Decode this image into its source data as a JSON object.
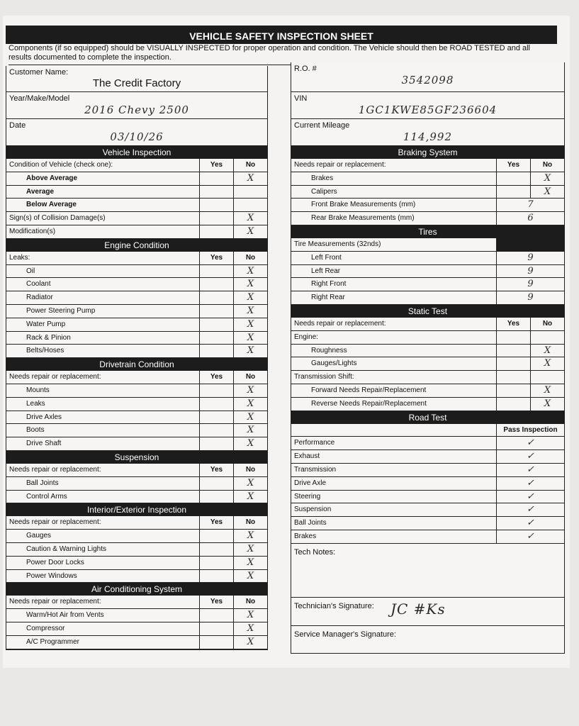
{
  "title": "VEHICLE SAFETY INSPECTION SHEET",
  "intro": "Components (if so equipped) should be VISUALLY INSPECTED for proper operation and condition. The Vehicle should then be ROAD TESTED and all results documented to complete the inspection.",
  "left_fields": [
    {
      "label": "Customer Name:",
      "value": "The Credit Factory",
      "hand": false
    },
    {
      "label": "Year/Make/Model",
      "value": "2016 Chevy 2500",
      "hand": true
    },
    {
      "label": "Date",
      "value": "03/10/26",
      "hand": true
    }
  ],
  "right_fields": [
    {
      "label": "R.O. #",
      "value": "3542098"
    },
    {
      "label": "VIN",
      "value": "1GC1KWE85GF236604"
    },
    {
      "label": "Current Mileage",
      "value": "114,992"
    }
  ],
  "left_sections": [
    {
      "title": "Vehicle Inspection",
      "rows": [
        {
          "type": "head",
          "label": "Condition of Vehicle (check one):",
          "yes": "Yes",
          "no": "No"
        },
        {
          "label": "Above Average",
          "bold": true,
          "ind": true,
          "no": "X"
        },
        {
          "label": "Average",
          "bold": true,
          "ind": true
        },
        {
          "label": "Below Average",
          "bold": true,
          "ind": true
        },
        {
          "label": "Sign(s) of Collision Damage(s)",
          "no": "X"
        },
        {
          "label": "Modification(s)",
          "no": "X"
        }
      ]
    },
    {
      "title": "Engine Condition",
      "rows": [
        {
          "type": "head",
          "label": "Leaks:",
          "yes": "Yes",
          "no": "No"
        },
        {
          "label": "Oil",
          "ind": true,
          "no": "X"
        },
        {
          "label": "Coolant",
          "ind": true,
          "no": "X"
        },
        {
          "label": "Radiator",
          "ind": true,
          "no": "X"
        },
        {
          "label": "Power Steering Pump",
          "ind": true,
          "no": "X"
        },
        {
          "label": "Water Pump",
          "ind": true,
          "no": "X"
        },
        {
          "label": "Rack & Pinion",
          "ind": true,
          "no": "X"
        },
        {
          "label": "Belts/Hoses",
          "ind": true,
          "no": "X"
        }
      ]
    },
    {
      "title": "Drivetrain Condition",
      "rows": [
        {
          "type": "head",
          "label": "Needs repair or replacement:",
          "yes": "Yes",
          "no": "No"
        },
        {
          "label": "Mounts",
          "ind": true,
          "no": "X"
        },
        {
          "label": "Leaks",
          "ind": true,
          "no": "X"
        },
        {
          "label": "Drive Axles",
          "ind": true,
          "no": "X"
        },
        {
          "label": "Boots",
          "ind": true,
          "no": "X"
        },
        {
          "label": "Drive Shaft",
          "ind": true,
          "no": "X"
        }
      ]
    },
    {
      "title": "Suspension",
      "rows": [
        {
          "type": "head",
          "label": "Needs repair or replacement:",
          "yes": "Yes",
          "no": "No"
        },
        {
          "label": "Ball Joints",
          "ind": true,
          "no": "X"
        },
        {
          "label": "Control Arms",
          "ind": true,
          "no": "X"
        }
      ]
    },
    {
      "title": "Interior/Exterior Inspection",
      "rows": [
        {
          "type": "head",
          "label": "Needs repair or replacement:",
          "yes": "Yes",
          "no": "No"
        },
        {
          "label": "Gauges",
          "ind": true,
          "no": "X"
        },
        {
          "label": "Caution & Warning Lights",
          "ind": true,
          "no": "X"
        },
        {
          "label": "Power Door Locks",
          "ind": true,
          "no": "X"
        },
        {
          "label": "Power Windows",
          "ind": true,
          "no": "X"
        }
      ]
    },
    {
      "title": "Air Conditioning System",
      "rows": [
        {
          "type": "head",
          "label": "Needs repair or replacement:",
          "yes": "Yes",
          "no": "No"
        },
        {
          "label": "Warm/Hot Air from Vents",
          "ind": true,
          "no": "X"
        },
        {
          "label": "Compressor",
          "ind": true,
          "no": "X"
        },
        {
          "label": "A/C Programmer",
          "ind": true,
          "no": "X"
        }
      ]
    }
  ],
  "right_sections": [
    {
      "title": "Braking System",
      "rows": [
        {
          "type": "head",
          "label": "Needs repair or replacement:",
          "yes": "Yes",
          "no": "No"
        },
        {
          "label": "Brakes",
          "ind": true,
          "no": "X"
        },
        {
          "label": "Calipers",
          "ind": true,
          "no": "X"
        },
        {
          "type": "val",
          "label": "Front Brake Measurements (mm)",
          "ind": true,
          "value": "7"
        },
        {
          "type": "val",
          "label": "Rear Brake Measurements (mm)",
          "ind": true,
          "value": "6"
        }
      ]
    },
    {
      "title": "Tires",
      "rows": [
        {
          "type": "darkhead",
          "label": "Tire Measurements (32nds)"
        },
        {
          "type": "val",
          "label": "Left Front",
          "ind": true,
          "value": "9"
        },
        {
          "type": "val",
          "label": "Left Rear",
          "ind": true,
          "value": "9"
        },
        {
          "type": "val",
          "label": "Right Front",
          "ind": true,
          "value": "9"
        },
        {
          "type": "val",
          "label": "Right Rear",
          "ind": true,
          "value": "9"
        }
      ]
    },
    {
      "title": "Static Test",
      "rows": [
        {
          "type": "head",
          "label": "Needs repair or replacement:",
          "yes": "Yes",
          "no": "No"
        },
        {
          "label": "Engine:"
        },
        {
          "label": "Roughness",
          "ind": true,
          "no": "X"
        },
        {
          "label": "Gauges/Lights",
          "ind": true,
          "no": "X"
        },
        {
          "label": "Transmission Shift:"
        },
        {
          "label": "Forward Needs Repair/Replacement",
          "ind": true,
          "no": "X"
        },
        {
          "label": "Reverse Needs Repair/Replacement",
          "ind": true,
          "no": "X"
        }
      ]
    },
    {
      "title": "Road Test",
      "rows": [
        {
          "type": "passhead",
          "label": "",
          "pass": "Pass Inspection"
        },
        {
          "type": "pass",
          "label": "Performance",
          "value": "✓"
        },
        {
          "type": "pass",
          "label": "Exhaust",
          "value": "✓"
        },
        {
          "type": "pass",
          "label": "Transmission",
          "value": "✓"
        },
        {
          "type": "pass",
          "label": "Drive Axle",
          "value": "✓"
        },
        {
          "type": "pass",
          "label": "Steering",
          "value": "✓"
        },
        {
          "type": "pass",
          "label": "Suspension",
          "value": "✓"
        },
        {
          "type": "pass",
          "label": "Ball Joints",
          "value": "✓"
        },
        {
          "type": "pass",
          "label": "Brakes",
          "value": "✓"
        }
      ]
    }
  ],
  "tech_notes_label": "Tech Notes:",
  "tech_signature_label": "Technician's Signature:",
  "service_manager_signature_label": "Service Manager's Signature:",
  "tech_signature": "JC #Ks"
}
